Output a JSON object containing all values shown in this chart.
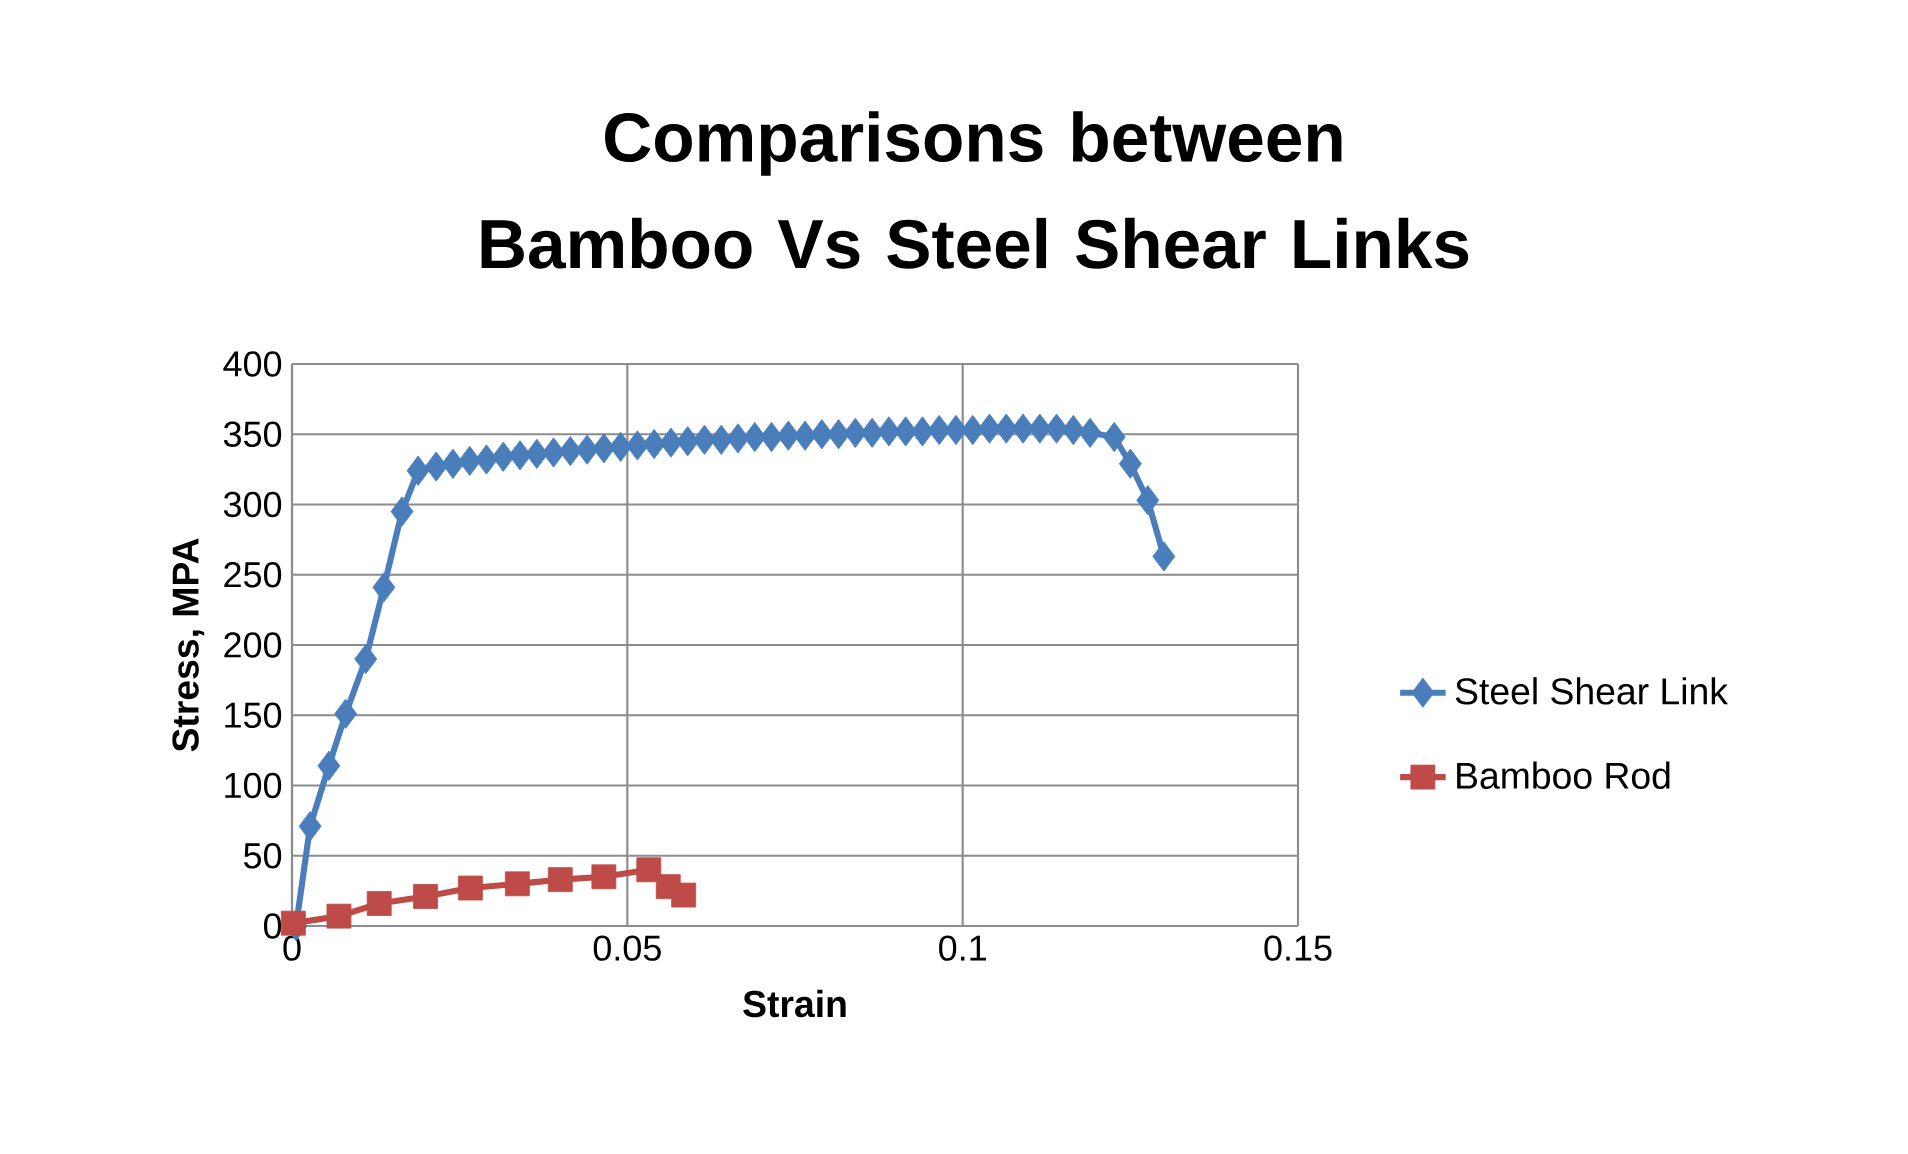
{
  "chart_data": {
    "type": "line",
    "title": "Comparisons between Bamboo Vs Steel Shear Links",
    "xlabel": "Strain",
    "ylabel": "Stress, MPA",
    "xlim": [
      0,
      0.15
    ],
    "xticks": [
      0,
      0.05,
      0.1,
      0.15
    ],
    "ylim": [
      0,
      400
    ],
    "yticks": [
      0,
      50,
      100,
      150,
      200,
      250,
      300,
      350,
      400
    ],
    "grid": true,
    "legend": "right",
    "series": [
      {
        "name": "Steel Shear Link",
        "color": "#4a7ebb",
        "marker": "diamond",
        "x": [
          0.0006,
          0.0027,
          0.0055,
          0.008,
          0.011,
          0.0137,
          0.0164,
          0.0188,
          0.0215,
          0.024,
          0.0265,
          0.029,
          0.0315,
          0.034,
          0.0365,
          0.039,
          0.0415,
          0.044,
          0.0465,
          0.049,
          0.0515,
          0.054,
          0.0565,
          0.059,
          0.0615,
          0.064,
          0.0665,
          0.069,
          0.0715,
          0.074,
          0.0765,
          0.079,
          0.0815,
          0.084,
          0.0865,
          0.089,
          0.0915,
          0.094,
          0.0965,
          0.099,
          0.1015,
          0.104,
          0.1065,
          0.109,
          0.1115,
          0.114,
          0.1165,
          0.119,
          0.1226,
          0.125,
          0.1276,
          0.13
        ],
        "values": [
          0,
          71,
          114,
          151,
          190,
          241,
          295,
          324,
          327,
          329,
          331,
          332,
          334,
          335,
          336,
          337,
          338,
          339,
          340,
          341,
          342,
          343,
          344,
          345,
          346,
          346,
          347,
          348,
          348,
          349,
          349,
          350,
          350,
          351,
          351,
          352,
          352,
          352,
          353,
          353,
          353,
          354,
          354,
          354,
          354,
          354,
          353,
          351,
          348,
          329,
          303,
          263
        ]
      },
      {
        "name": "Bamboo Rod",
        "color": "#be4b48",
        "marker": "square",
        "x": [
          0.0002,
          0.007,
          0.013,
          0.0199,
          0.0266,
          0.0336,
          0.04,
          0.0465,
          0.0532,
          0.0561,
          0.0584
        ],
        "values": [
          2,
          7,
          16,
          21,
          27,
          30,
          33,
          35,
          40,
          28,
          22
        ]
      }
    ]
  }
}
